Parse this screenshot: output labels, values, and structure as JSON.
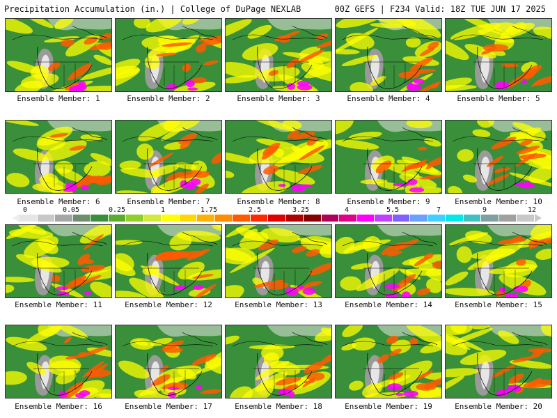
{
  "header": {
    "left": "Precipitation Accumulation (in.) | College of DuPage NEXLAB",
    "right": "00Z GEFS | F234 Valid: 18Z TUE JUN 17 2025"
  },
  "members": [
    "Ensemble Member: 1",
    "Ensemble Member: 2",
    "Ensemble Member: 3",
    "Ensemble Member: 4",
    "Ensemble Member: 5",
    "Ensemble Member: 6",
    "Ensemble Member: 7",
    "Ensemble Member: 8",
    "Ensemble Member: 9",
    "Ensemble Member: 10",
    "Ensemble Member: 11",
    "Ensemble Member: 12",
    "Ensemble Member: 13",
    "Ensemble Member: 14",
    "Ensemble Member: 15",
    "Ensemble Member: 16",
    "Ensemble Member: 17",
    "Ensemble Member: 18",
    "Ensemble Member: 19",
    "Ensemble Member: 20"
  ],
  "legend": {
    "ticks": [
      "0",
      "0.05",
      "0.25",
      "1",
      "1.75",
      "2.5",
      "3.25",
      "4",
      "5.5",
      "7",
      "9",
      "12"
    ],
    "colors": [
      "#e6e6e6",
      "#c8c8c8",
      "#a6a6a6",
      "#6e8f6e",
      "#3a8f3a",
      "#5aab2e",
      "#8fcf2a",
      "#d2e83a",
      "#ffff00",
      "#ffd700",
      "#ffb000",
      "#ff8c00",
      "#ff5a00",
      "#ff2a00",
      "#e00000",
      "#b00000",
      "#880000",
      "#b0005a",
      "#e0008a",
      "#ff00ff",
      "#c040ff",
      "#8060ff",
      "#6aa0ff",
      "#40d0ff",
      "#00e8e8",
      "#40c0c0",
      "#80a0a0",
      "#a0a0a0",
      "#c8c8c8"
    ]
  },
  "map_colors": {
    "ocean": "#3a8f3a",
    "dry_land": "#9a9a9a",
    "light": "#e6e6e6",
    "wet": "#ffff00",
    "heavy": "#ff5a00",
    "extreme": "#ff00ff",
    "borders": "#000000"
  }
}
